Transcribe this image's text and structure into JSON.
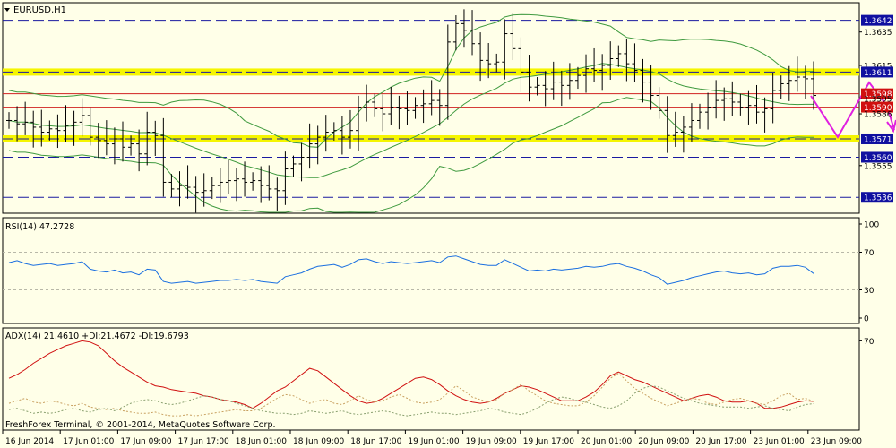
{
  "app": {
    "symbol_title": "EURUSD,H1",
    "copyright": "FreshForex Terminal, © 2001-2014, MetaQuotes Software Corp."
  },
  "colors": {
    "background": "#ffffe8",
    "grid": "#b8b8a8",
    "candle": "#000000",
    "bollinger": "#3f9a3f",
    "support_resistance_dash": "#1a1aa0",
    "highlight_band": "#f5f500",
    "red_level": "#d02020",
    "label_blue_bg": "#1010a0",
    "label_red_bg": "#d01010",
    "rsi_line": "#1a6fe0",
    "adx_line": "#d01010",
    "di_plus": "#c8a060",
    "di_minus": "#8aa070",
    "forecast_arrow": "#e020e0"
  },
  "chart_data": [
    {
      "type": "candlestick",
      "title": "EURUSD,H1",
      "price_range": [
        1.3527,
        1.3652
      ],
      "price_ticks": [
        "1.3642",
        "1.3635",
        "1.3615",
        "1.3611",
        "1.3598",
        "1.3595",
        "1.3590",
        "1.3586",
        "1.3571",
        "1.3560",
        "1.3555",
        "1.3536"
      ],
      "x_tick_labels": [
        "16 Jun 2014",
        "17 Jun 01:00",
        "17 Jun 09:00",
        "17 Jun 17:00",
        "18 Jun 01:00",
        "18 Jun 09:00",
        "18 Jun 17:00",
        "19 Jun 01:00",
        "19 Jun 09:00",
        "19 Jun 17:00",
        "20 Jun 01:00",
        "20 Jun 09:00",
        "20 Jun 17:00",
        "23 Jun 01:00",
        "23 Jun 09:00"
      ],
      "horizontal_levels": [
        {
          "value": 1.3642,
          "label": "1.3642",
          "style": "blue-dashed"
        },
        {
          "value": 1.3611,
          "label": "1.3611",
          "style": "blue-dashed-yellow-band"
        },
        {
          "value": 1.3598,
          "label": "1.3598",
          "style": "red"
        },
        {
          "value": 1.359,
          "label": "1.3590",
          "style": "red"
        },
        {
          "value": 1.3571,
          "label": "1.3571",
          "style": "blue-dashed-yellow-band"
        },
        {
          "value": 1.356,
          "label": "1.3560",
          "style": "blue-dashed"
        },
        {
          "value": 1.3536,
          "label": "1.3536",
          "style": "blue-dashed"
        }
      ],
      "closes": [
        1.3582,
        1.358,
        1.3581,
        1.3578,
        1.3575,
        1.3577,
        1.3576,
        1.3579,
        1.3581,
        1.3585,
        1.3572,
        1.357,
        1.3568,
        1.3571,
        1.3566,
        1.3568,
        1.3562,
        1.3575,
        1.3573,
        1.3545,
        1.3541,
        1.3543,
        1.3542,
        1.3539,
        1.354,
        1.3543,
        1.3545,
        1.3546,
        1.3547,
        1.3545,
        1.3546,
        1.3543,
        1.3541,
        1.354,
        1.3553,
        1.3556,
        1.356,
        1.3568,
        1.3572,
        1.3575,
        1.3576,
        1.3572,
        1.3576,
        1.359,
        1.3593,
        1.3589,
        1.3586,
        1.359,
        1.3589,
        1.3588,
        1.3591,
        1.3592,
        1.3594,
        1.3591,
        1.3629,
        1.364,
        1.3636,
        1.3628,
        1.3618,
        1.3616,
        1.3617,
        1.3634,
        1.3625,
        1.3611,
        1.3602,
        1.3603,
        1.3601,
        1.3605,
        1.3603,
        1.3606,
        1.3609,
        1.3613,
        1.3612,
        1.3615,
        1.3619,
        1.3622,
        1.3616,
        1.3612,
        1.3605,
        1.3597,
        1.3588,
        1.3573,
        1.3575,
        1.3578,
        1.3582,
        1.3587,
        1.359,
        1.3594,
        1.3595,
        1.3593,
        1.359,
        1.3591,
        1.3587,
        1.3589,
        1.36,
        1.3604,
        1.3606,
        1.3608,
        1.3607,
        1.3597
      ],
      "bollinger": {
        "period": 20
      }
    },
    {
      "type": "line",
      "title": "RSI(14) 47.2728",
      "y_ticks": [
        "100",
        "70",
        "30",
        "0"
      ],
      "levels": [
        70,
        30
      ],
      "values": [
        59,
        61,
        58,
        56,
        57,
        58,
        56,
        57,
        58,
        60,
        52,
        50,
        49,
        51,
        48,
        49,
        46,
        52,
        51,
        39,
        37,
        38,
        39,
        37,
        38,
        39,
        40,
        40,
        41,
        40,
        41,
        39,
        38,
        37,
        44,
        46,
        48,
        52,
        55,
        56,
        57,
        54,
        57,
        62,
        63,
        60,
        58,
        60,
        59,
        58,
        59,
        60,
        61,
        59,
        65,
        66,
        63,
        60,
        57,
        56,
        56,
        62,
        58,
        54,
        50,
        51,
        50,
        52,
        51,
        52,
        53,
        55,
        54,
        55,
        57,
        58,
        55,
        53,
        50,
        46,
        43,
        36,
        38,
        40,
        43,
        45,
        47,
        49,
        50,
        48,
        47,
        48,
        46,
        47,
        53,
        55,
        55,
        56,
        54,
        47.3
      ]
    },
    {
      "type": "line",
      "title": "ADX(14) 21.4610 +DI:21.4672 -DI:19.6793",
      "y_ticks": [
        "70"
      ],
      "series": [
        {
          "name": "ADX(14)",
          "values": [
            40,
            43,
            47,
            52,
            56,
            60,
            63,
            66,
            68,
            70,
            69,
            66,
            60,
            54,
            49,
            45,
            41,
            37,
            34,
            33,
            31,
            30,
            29,
            28,
            26,
            25,
            23,
            22,
            21,
            19,
            16,
            20,
            25,
            30,
            33,
            38,
            43,
            48,
            46,
            41,
            36,
            31,
            26,
            22,
            20,
            21,
            24,
            28,
            32,
            36,
            40,
            41,
            39,
            35,
            30,
            26,
            23,
            21,
            20,
            21,
            24,
            28,
            31,
            34,
            33,
            31,
            28,
            25,
            22,
            22,
            22,
            25,
            29,
            35,
            42,
            45,
            42,
            39,
            37,
            34,
            31,
            28,
            25,
            22,
            24,
            26,
            27,
            25,
            22,
            21,
            21,
            22,
            20,
            16,
            16,
            17,
            19,
            21,
            22,
            21.5
          ]
        },
        {
          "name": "+DI",
          "values": [
            20,
            22,
            24,
            21,
            20,
            22,
            21,
            19,
            18,
            20,
            17,
            16,
            15,
            16,
            14,
            13,
            12,
            12,
            13,
            11,
            10,
            10,
            11,
            10,
            11,
            12,
            13,
            14,
            15,
            14,
            14,
            16,
            20,
            24,
            27,
            26,
            23,
            20,
            22,
            23,
            20,
            19,
            22,
            26,
            23,
            21,
            22,
            25,
            27,
            24,
            21,
            20,
            21,
            23,
            28,
            34,
            30,
            25,
            23,
            21,
            23,
            28,
            31,
            35,
            30,
            26,
            22,
            20,
            19,
            18,
            18,
            21,
            26,
            33,
            40,
            44,
            38,
            32,
            28,
            24,
            21,
            18,
            20,
            22,
            24,
            23,
            20,
            19,
            21,
            23,
            24,
            22,
            20,
            19,
            22,
            26,
            28,
            23,
            24,
            21.5
          ]
        },
        {
          "name": "-DI",
          "values": [
            15,
            16,
            14,
            12,
            13,
            12,
            13,
            15,
            16,
            14,
            13,
            15,
            16,
            14,
            17,
            20,
            22,
            23,
            22,
            20,
            19,
            20,
            22,
            24,
            26,
            25,
            23,
            22,
            20,
            18,
            16,
            14,
            13,
            12,
            12,
            11,
            12,
            14,
            13,
            12,
            13,
            14,
            12,
            11,
            12,
            13,
            14,
            13,
            11,
            10,
            11,
            12,
            13,
            12,
            12,
            11,
            12,
            13,
            14,
            16,
            15,
            13,
            12,
            11,
            13,
            16,
            20,
            23,
            25,
            24,
            22,
            21,
            19,
            17,
            16,
            18,
            22,
            28,
            32,
            34,
            33,
            30,
            27,
            24,
            22,
            20,
            19,
            18,
            17,
            17,
            17,
            16,
            17,
            18,
            16,
            15,
            14,
            17,
            19,
            19.7
          ]
        }
      ]
    }
  ]
}
